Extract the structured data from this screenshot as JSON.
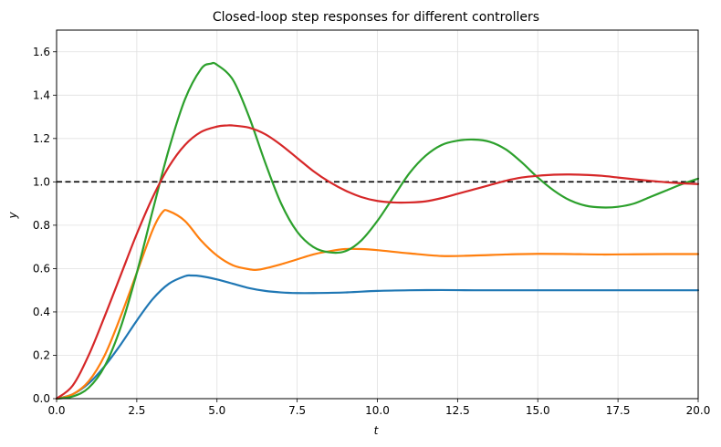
{
  "chart_data": {
    "type": "line",
    "title": "Closed-loop step responses for different controllers",
    "xlabel": "t",
    "ylabel": "y",
    "xlim": [
      0,
      20
    ],
    "ylim": [
      0,
      1.7
    ],
    "grid": true,
    "xticks": [
      0,
      2.5,
      5,
      7.5,
      10,
      12.5,
      15,
      17.5,
      20
    ],
    "xtick_labels": [
      "0.0",
      "2.5",
      "5.0",
      "7.5",
      "10.0",
      "12.5",
      "15.0",
      "17.5",
      "20.0"
    ],
    "yticks": [
      0,
      0.2,
      0.4,
      0.6,
      0.8,
      1.0,
      1.2,
      1.4,
      1.6
    ],
    "ytick_labels": [
      "0.0",
      "0.2",
      "0.4",
      "0.6",
      "0.8",
      "1.0",
      "1.2",
      "1.4",
      "1.6"
    ],
    "reference_line": {
      "y": 1.0,
      "style": "dashed",
      "color": "#000000"
    },
    "series": [
      {
        "color": "#1f77b4",
        "points": [
          [
            0,
            0
          ],
          [
            0.5,
            0.02
          ],
          [
            1,
            0.07
          ],
          [
            1.5,
            0.15
          ],
          [
            2,
            0.25
          ],
          [
            2.5,
            0.36
          ],
          [
            3,
            0.46
          ],
          [
            3.5,
            0.53
          ],
          [
            4,
            0.565
          ],
          [
            4.2,
            0.568
          ],
          [
            4.5,
            0.565
          ],
          [
            5,
            0.55
          ],
          [
            5.5,
            0.53
          ],
          [
            6,
            0.51
          ],
          [
            6.5,
            0.497
          ],
          [
            7,
            0.49
          ],
          [
            7.5,
            0.487
          ],
          [
            8,
            0.487
          ],
          [
            9,
            0.49
          ],
          [
            10,
            0.497
          ],
          [
            11,
            0.5
          ],
          [
            12,
            0.501
          ],
          [
            13,
            0.5
          ],
          [
            14,
            0.5
          ],
          [
            16,
            0.5
          ],
          [
            18,
            0.5
          ],
          [
            20,
            0.5
          ]
        ]
      },
      {
        "color": "#ff7f0e",
        "points": [
          [
            0,
            0
          ],
          [
            0.5,
            0.02
          ],
          [
            1,
            0.08
          ],
          [
            1.5,
            0.2
          ],
          [
            2,
            0.38
          ],
          [
            2.5,
            0.58
          ],
          [
            3,
            0.78
          ],
          [
            3.3,
            0.86
          ],
          [
            3.5,
            0.865
          ],
          [
            4,
            0.82
          ],
          [
            4.5,
            0.73
          ],
          [
            5,
            0.66
          ],
          [
            5.5,
            0.615
          ],
          [
            6,
            0.597
          ],
          [
            6.3,
            0.595
          ],
          [
            7,
            0.62
          ],
          [
            8,
            0.665
          ],
          [
            8.5,
            0.68
          ],
          [
            9,
            0.69
          ],
          [
            9.5,
            0.69
          ],
          [
            10,
            0.685
          ],
          [
            11,
            0.67
          ],
          [
            12,
            0.658
          ],
          [
            13,
            0.66
          ],
          [
            14,
            0.665
          ],
          [
            15,
            0.668
          ],
          [
            16,
            0.667
          ],
          [
            17,
            0.665
          ],
          [
            18,
            0.666
          ],
          [
            19,
            0.667
          ],
          [
            20,
            0.667
          ]
        ]
      },
      {
        "color": "#2ca02c",
        "points": [
          [
            0,
            0
          ],
          [
            0.5,
            0.01
          ],
          [
            1,
            0.05
          ],
          [
            1.5,
            0.15
          ],
          [
            2,
            0.33
          ],
          [
            2.5,
            0.58
          ],
          [
            3,
            0.87
          ],
          [
            3.5,
            1.15
          ],
          [
            4,
            1.38
          ],
          [
            4.5,
            1.52
          ],
          [
            4.8,
            1.545
          ],
          [
            5,
            1.54
          ],
          [
            5.5,
            1.47
          ],
          [
            6,
            1.3
          ],
          [
            6.5,
            1.09
          ],
          [
            7,
            0.9
          ],
          [
            7.5,
            0.77
          ],
          [
            8,
            0.7
          ],
          [
            8.5,
            0.675
          ],
          [
            9,
            0.68
          ],
          [
            9.5,
            0.73
          ],
          [
            10,
            0.82
          ],
          [
            10.5,
            0.93
          ],
          [
            11,
            1.04
          ],
          [
            11.5,
            1.12
          ],
          [
            12,
            1.17
          ],
          [
            12.5,
            1.19
          ],
          [
            13,
            1.195
          ],
          [
            13.5,
            1.185
          ],
          [
            14,
            1.15
          ],
          [
            14.5,
            1.09
          ],
          [
            15,
            1.02
          ],
          [
            15.5,
            0.96
          ],
          [
            16,
            0.915
          ],
          [
            16.5,
            0.89
          ],
          [
            17,
            0.882
          ],
          [
            17.5,
            0.885
          ],
          [
            18,
            0.9
          ],
          [
            18.5,
            0.93
          ],
          [
            19,
            0.96
          ],
          [
            19.5,
            0.99
          ],
          [
            20,
            1.015
          ]
        ]
      },
      {
        "color": "#d62728",
        "points": [
          [
            0,
            0
          ],
          [
            0.5,
            0.06
          ],
          [
            1,
            0.2
          ],
          [
            1.5,
            0.38
          ],
          [
            2,
            0.57
          ],
          [
            2.5,
            0.76
          ],
          [
            3,
            0.93
          ],
          [
            3.5,
            1.07
          ],
          [
            4,
            1.17
          ],
          [
            4.5,
            1.23
          ],
          [
            5,
            1.255
          ],
          [
            5.3,
            1.26
          ],
          [
            5.5,
            1.26
          ],
          [
            6,
            1.25
          ],
          [
            6.5,
            1.22
          ],
          [
            7,
            1.17
          ],
          [
            7.5,
            1.11
          ],
          [
            8,
            1.05
          ],
          [
            8.5,
            1.0
          ],
          [
            9,
            0.96
          ],
          [
            9.5,
            0.93
          ],
          [
            10,
            0.912
          ],
          [
            10.5,
            0.905
          ],
          [
            11,
            0.905
          ],
          [
            11.5,
            0.91
          ],
          [
            12,
            0.925
          ],
          [
            12.5,
            0.945
          ],
          [
            13,
            0.965
          ],
          [
            13.5,
            0.985
          ],
          [
            14,
            1.005
          ],
          [
            14.5,
            1.02
          ],
          [
            15,
            1.028
          ],
          [
            15.5,
            1.033
          ],
          [
            16,
            1.034
          ],
          [
            16.5,
            1.032
          ],
          [
            17,
            1.028
          ],
          [
            17.5,
            1.02
          ],
          [
            18,
            1.012
          ],
          [
            18.5,
            1.005
          ],
          [
            19,
            0.998
          ],
          [
            19.5,
            0.993
          ],
          [
            20,
            0.99
          ]
        ]
      }
    ]
  }
}
